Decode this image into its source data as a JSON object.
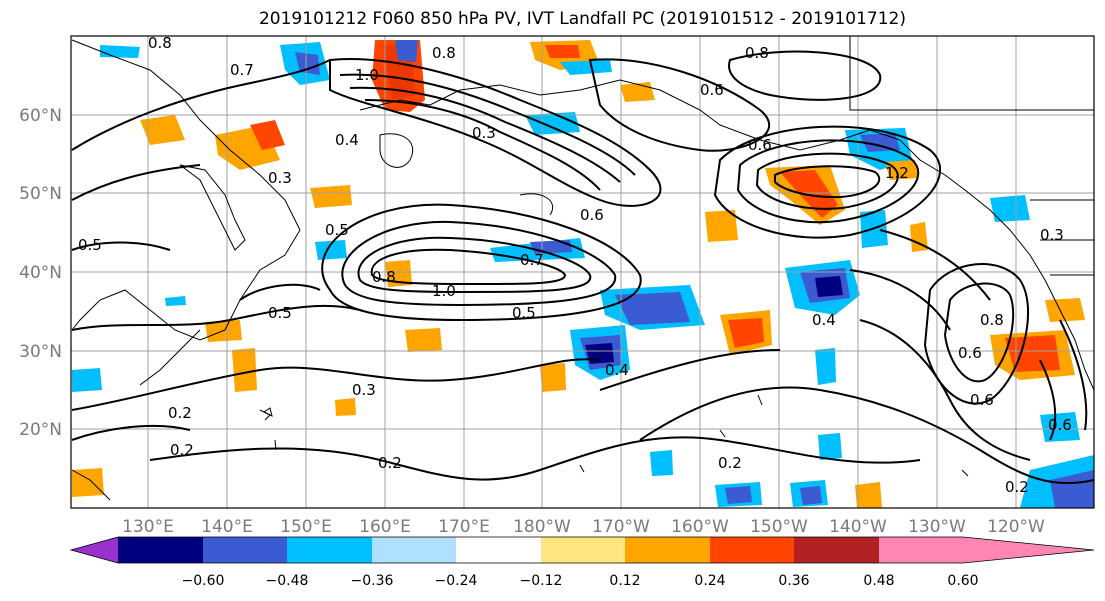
{
  "title": "2019101212 F060 850 hPa PV, IVT Landfall PC (2019101512 - 2019101712)",
  "map": {
    "lat_labels": [
      "60°N",
      "50°N",
      "40°N",
      "30°N",
      "20°N"
    ],
    "lon_labels": [
      "130°E",
      "140°E",
      "150°E",
      "160°E",
      "170°E",
      "180°W",
      "170°W",
      "160°W",
      "150°W",
      "140°W",
      "130°W",
      "120°W"
    ],
    "contour_labels": [
      "0.8",
      "1.0",
      "0.8",
      "0.8",
      "0.7",
      "0.4",
      "0.3",
      "0.3",
      "0.6",
      "0.5",
      "0.5",
      "0.8",
      "1.0",
      "0.7",
      "0.5",
      "0.6",
      "0.4",
      "0.5",
      "0.3",
      "0.2",
      "0.2",
      "0.2",
      "0.2",
      "0.4",
      "0.6",
      "0.6",
      "0.6",
      "0.2",
      "0.8",
      "0.6",
      "1.2",
      "0.3"
    ],
    "colors": {
      "land_line": "#000000",
      "grid": "#9a9a9a",
      "contour": "#000000"
    }
  },
  "colorbar": {
    "tick_labels": [
      "−0.60",
      "−0.48",
      "−0.36",
      "−0.24",
      "−0.12",
      "0.12",
      "0.24",
      "0.36",
      "0.48",
      "0.60"
    ],
    "colors": [
      "#9932cc",
      "#00007f",
      "#3a5bd1",
      "#00bfff",
      "#b0e0ff",
      "#ffffff",
      "#ffe680",
      "#ffa500",
      "#ff4500",
      "#b22222",
      "#ff85b3"
    ]
  }
}
